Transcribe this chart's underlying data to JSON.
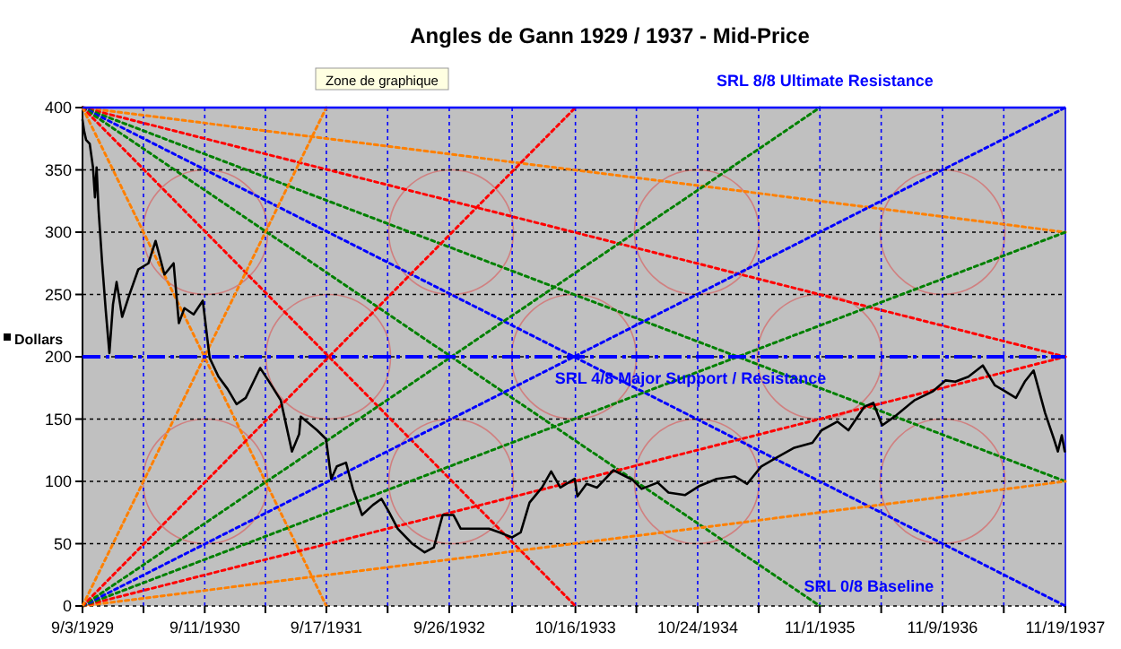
{
  "chart_data": {
    "type": "line",
    "title": "Angles de Gann 1929 / 1937  - Mid-Price",
    "annotations": [
      "Zone de graphique",
      "SRL 0/8 Baseline"
    ],
    "xlim": [
      "1929-09-03",
      "1937-11-19"
    ],
    "xticks": [
      {
        "value": "1929-09-03",
        "label": "9/3/1929"
      },
      {
        "value": "1930-03-08",
        "label": null
      },
      {
        "value": "1930-09-11",
        "label": "9/11/1930"
      },
      {
        "value": "1931-03-15",
        "label": null
      },
      {
        "value": "1931-09-17",
        "label": "9/17/1931"
      },
      {
        "value": "1932-03-22",
        "label": null
      },
      {
        "value": "1932-09-26",
        "label": "9/26/1932"
      },
      {
        "value": "1933-04-06",
        "label": null
      },
      {
        "value": "1933-10-16",
        "label": "10/16/1933"
      },
      {
        "value": "1934-04-20",
        "label": null
      },
      {
        "value": "1934-10-24",
        "label": "10/24/1934"
      },
      {
        "value": "1935-04-28",
        "label": null
      },
      {
        "value": "1935-11-01",
        "label": "11/1/1935"
      },
      {
        "value": "1936-05-06",
        "label": null
      },
      {
        "value": "1936-11-09",
        "label": "11/9/1936"
      },
      {
        "value": "1937-05-15",
        "label": null
      },
      {
        "value": "1937-11-19",
        "label": "11/19/1937"
      }
    ],
    "ylim": [
      0,
      400
    ],
    "yticks": [
      0,
      50,
      100,
      150,
      200,
      250,
      300,
      350,
      400
    ],
    "grid": true,
    "legend": "left",
    "ref_lines": [
      {
        "axis": "y",
        "value": 400,
        "label": "SRL 8/8 Ultimate Resistance",
        "color": "#0000ff",
        "line_style": "solid"
      },
      {
        "axis": "y",
        "value": 200,
        "label": "SRL 4/8 Major Support / Resistance",
        "color": "#0000ff",
        "line_style": "dashdot"
      }
    ],
    "series": [
      {
        "name": "Dollars",
        "color": "#000000",
        "line_style": "solid",
        "x": [
          "1929-09-03",
          "1929-09-08",
          "1929-09-14",
          "1929-09-25",
          "1929-10-05",
          "1929-10-11",
          "1929-10-16",
          "1929-10-22",
          "1929-11-02",
          "1929-11-13",
          "1929-11-24",
          "1929-12-05",
          "1929-12-16",
          "1930-01-02",
          "1930-01-23",
          "1930-02-20",
          "1930-03-23",
          "1930-04-14",
          "1930-05-11",
          "1930-06-08",
          "1930-06-24",
          "1930-07-11",
          "1930-08-08",
          "1930-09-05",
          "1930-09-26",
          "1930-10-23",
          "1930-11-20",
          "1930-12-17",
          "1931-01-14",
          "1931-02-27",
          "1931-03-24",
          "1931-05-01",
          "1931-06-04",
          "1931-06-26",
          "1931-07-01",
          "1931-08-20",
          "1931-09-16",
          "1931-10-02",
          "1931-10-19",
          "1931-11-16",
          "1931-12-07",
          "1932-01-04",
          "1932-02-06",
          "1932-03-03",
          "1932-03-25",
          "1932-04-22",
          "1932-06-05",
          "1932-07-13",
          "1932-08-10",
          "1932-09-06",
          "1932-10-09",
          "1932-10-31",
          "1933-01-25",
          "1933-02-27",
          "1933-04-05",
          "1933-05-02",
          "1933-05-29",
          "1933-07-06",
          "1933-08-03",
          "1933-08-31",
          "1933-10-14",
          "1933-10-22",
          "1933-11-19",
          "1933-12-21",
          "1934-02-09",
          "1934-04-09",
          "1934-05-06",
          "1934-06-24",
          "1934-07-27",
          "1934-09-15",
          "1934-10-27",
          "1934-12-21",
          "1935-02-14",
          "1935-03-24",
          "1935-05-06",
          "1935-06-21",
          "1935-08-15",
          "1935-10-09",
          "1935-11-06",
          "1935-12-24",
          "1936-01-27",
          "1936-03-16",
          "1936-04-12",
          "1936-05-09",
          "1936-06-21",
          "1936-08-15",
          "1936-10-09",
          "1936-11-18",
          "1936-12-18",
          "1937-01-27",
          "1937-03-12",
          "1937-04-18",
          "1937-05-15",
          "1937-06-21",
          "1937-07-18",
          "1937-08-14",
          "1937-09-18",
          "1937-10-15",
          "1937-10-27",
          "1937-11-08",
          "1937-11-17"
        ],
        "values": [
          390,
          381,
          374,
          371,
          352,
          328,
          352,
          318,
          275,
          237,
          203,
          242,
          260,
          232,
          249,
          270,
          275,
          293,
          266,
          275,
          227,
          239,
          234,
          245,
          199,
          184,
          174,
          162,
          167,
          191,
          181,
          165,
          124,
          138,
          152,
          141,
          134,
          102,
          112,
          115,
          94,
          73,
          81,
          86,
          76,
          62,
          50,
          43,
          47,
          73,
          73,
          62,
          62,
          59,
          55,
          59,
          83,
          95,
          108,
          95,
          102,
          88,
          98,
          95,
          109,
          101,
          94,
          99,
          91,
          89,
          96,
          102,
          104,
          98,
          112,
          119,
          127,
          131,
          141,
          148,
          141,
          160,
          163,
          145,
          153,
          165,
          172,
          181,
          180,
          184,
          193,
          177,
          173,
          167,
          180,
          189,
          155,
          134,
          124,
          137,
          124
        ]
      },
      {
        "color": "#ff8000",
        "line_style": "dotted",
        "x": [
          "1929-09-03",
          "1931-09-17"
        ],
        "values": [
          0,
          400
        ]
      },
      {
        "color": "#ff0000",
        "line_style": "dotted",
        "x": [
          "1929-09-03",
          "1933-10-16"
        ],
        "values": [
          0,
          400
        ]
      },
      {
        "color": "#008000",
        "line_style": "dotted",
        "x": [
          "1929-09-03",
          "1935-11-01"
        ],
        "values": [
          0,
          400
        ]
      },
      {
        "color": "#0000ff",
        "line_style": "dotted",
        "x": [
          "1929-09-03",
          "1937-11-19"
        ],
        "values": [
          0,
          400
        ]
      },
      {
        "color": "#008000",
        "line_style": "dotted",
        "x": [
          "1929-09-03",
          "1937-11-19"
        ],
        "values": [
          0,
          300
        ]
      },
      {
        "color": "#ff0000",
        "line_style": "dotted",
        "x": [
          "1929-09-03",
          "1937-11-19"
        ],
        "values": [
          0,
          200
        ]
      },
      {
        "color": "#ff8000",
        "line_style": "dotted",
        "x": [
          "1929-09-03",
          "1937-11-19"
        ],
        "values": [
          0,
          100
        ]
      },
      {
        "color": "#ff8000",
        "line_style": "dotted",
        "x": [
          "1929-09-03",
          "1931-09-17"
        ],
        "values": [
          400,
          0
        ]
      },
      {
        "color": "#ff0000",
        "line_style": "dotted",
        "x": [
          "1929-09-03",
          "1933-10-16"
        ],
        "values": [
          400,
          0
        ]
      },
      {
        "color": "#008000",
        "line_style": "dotted",
        "x": [
          "1929-09-03",
          "1935-11-01"
        ],
        "values": [
          400,
          0
        ]
      },
      {
        "color": "#0000ff",
        "line_style": "dotted",
        "x": [
          "1929-09-03",
          "1937-11-19"
        ],
        "values": [
          400,
          0
        ]
      },
      {
        "color": "#008000",
        "line_style": "dotted",
        "x": [
          "1929-09-03",
          "1937-11-19"
        ],
        "values": [
          400,
          100
        ]
      },
      {
        "color": "#ff0000",
        "line_style": "dotted",
        "x": [
          "1929-09-03",
          "1937-11-19"
        ],
        "values": [
          400,
          200
        ]
      },
      {
        "color": "#ff8000",
        "line_style": "dotted",
        "x": [
          "1929-09-03",
          "1937-11-19"
        ],
        "values": [
          400,
          300
        ]
      }
    ]
  }
}
